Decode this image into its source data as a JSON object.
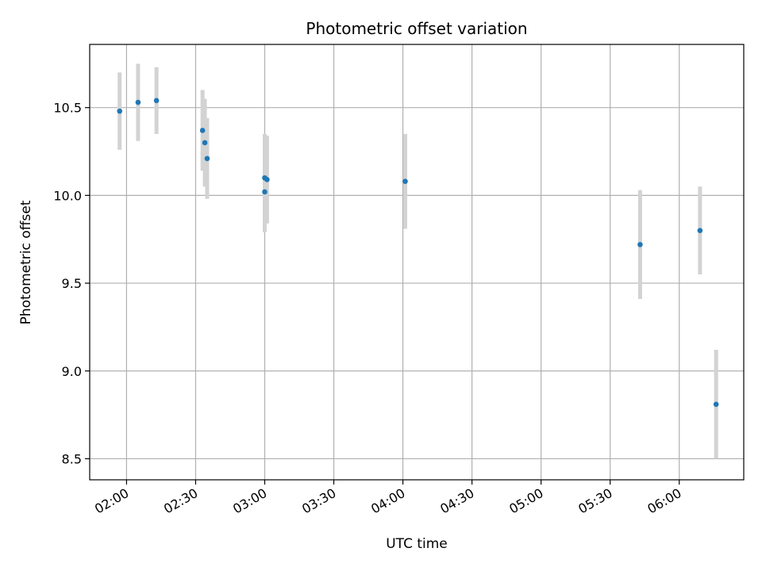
{
  "chart_data": {
    "type": "scatter",
    "title": "Photometric offset variation",
    "xlabel": "UTC time",
    "ylabel": "Photometric offset",
    "x_type": "time",
    "xlim": [
      "01:44",
      "06:28"
    ],
    "ylim": [
      8.38,
      10.86
    ],
    "xticks": [
      "02:00",
      "02:30",
      "03:00",
      "03:30",
      "04:00",
      "04:30",
      "05:00",
      "05:30",
      "06:00"
    ],
    "yticks": [
      "8.5",
      "9.0",
      "9.5",
      "10.0",
      "10.5"
    ],
    "grid": true,
    "legend": "none",
    "series": [
      {
        "marker_color": "#1f77b4",
        "errorbar_color": "#d3d3d3",
        "points": [
          {
            "x": "01:57",
            "y": 10.48,
            "err": 0.22
          },
          {
            "x": "02:05",
            "y": 10.53,
            "err": 0.22
          },
          {
            "x": "02:13",
            "y": 10.54,
            "err": 0.19
          },
          {
            "x": "02:33",
            "y": 10.37,
            "err": 0.23
          },
          {
            "x": "02:34",
            "y": 10.3,
            "err": 0.25
          },
          {
            "x": "02:35",
            "y": 10.21,
            "err": 0.23
          },
          {
            "x": "03:00",
            "y": 10.02,
            "err": 0.23
          },
          {
            "x": "03:00",
            "y": 10.1,
            "err": 0.25
          },
          {
            "x": "03:01",
            "y": 10.09,
            "err": 0.25
          },
          {
            "x": "04:01",
            "y": 10.08,
            "err": 0.27
          },
          {
            "x": "05:43",
            "y": 9.72,
            "err": 0.31
          },
          {
            "x": "06:09",
            "y": 9.8,
            "err": 0.25
          },
          {
            "x": "06:16",
            "y": 8.81,
            "err": 0.31
          }
        ]
      }
    ]
  }
}
